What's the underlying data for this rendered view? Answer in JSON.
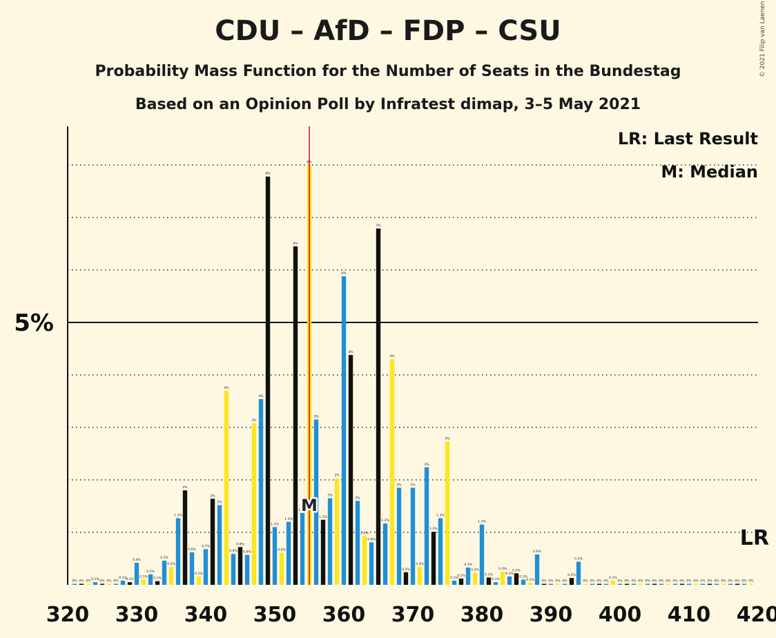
{
  "chart_data": {
    "type": "bar",
    "title": "CDU – AfD – FDP – CSU",
    "subtitle": "Probability Mass Function for the Number of Seats in the Bundestag",
    "subtitle2": "Based on an Opinion Poll by Infratest dimap, 3–5 May 2021",
    "copyright": "© 2021 Filip van Laenen",
    "xlim": [
      320,
      420
    ],
    "ylim": [
      0,
      11
    ],
    "x_ticks": [
      320,
      330,
      340,
      350,
      360,
      370,
      380,
      390,
      400,
      410,
      420
    ],
    "y_ticks": [
      {
        "value": 5,
        "label": "5%"
      }
    ],
    "gridlines": [
      1,
      2,
      3,
      4,
      5,
      6,
      7,
      8
    ],
    "grid": true,
    "legend": [
      "LR: Last Result",
      "M: Median"
    ],
    "legend_position": "top-right",
    "median": 355,
    "median_label": "M",
    "last_result_label": "LR",
    "colors": {
      "blue": "#1f8fd6",
      "yellow": "#fbe621",
      "black": "#111111",
      "median_line": "#d0021b",
      "background": "#fef8e2"
    },
    "bars": [
      {
        "seats": 321,
        "value": 0.02,
        "color": "blue",
        "label": "0%"
      },
      {
        "seats": 322,
        "value": 0.02,
        "color": "black",
        "label": "0%"
      },
      {
        "seats": 323,
        "value": 0.02,
        "color": "yellow",
        "label": "0%"
      },
      {
        "seats": 324,
        "value": 0.05,
        "color": "blue",
        "label": "0.1%"
      },
      {
        "seats": 325,
        "value": 0.02,
        "color": "black",
        "label": "0%"
      },
      {
        "seats": 326,
        "value": 0.02,
        "color": "yellow",
        "label": "0%"
      },
      {
        "seats": 327,
        "value": 0.02,
        "color": "blue",
        "label": "0%"
      },
      {
        "seats": 328,
        "value": 0.08,
        "color": "blue",
        "label": "0.1%"
      },
      {
        "seats": 329,
        "value": 0.05,
        "color": "black",
        "label": "0.1%"
      },
      {
        "seats": 330,
        "value": 0.42,
        "color": "blue",
        "label": "0.4%"
      },
      {
        "seats": 331,
        "value": 0.1,
        "color": "yellow",
        "label": "0.1%"
      },
      {
        "seats": 332,
        "value": 0.2,
        "color": "blue",
        "label": "0.2%"
      },
      {
        "seats": 333,
        "value": 0.07,
        "color": "black",
        "label": "0.1%"
      },
      {
        "seats": 334,
        "value": 0.46,
        "color": "blue",
        "label": "0.5%"
      },
      {
        "seats": 335,
        "value": 0.34,
        "color": "yellow",
        "label": "0.4%"
      },
      {
        "seats": 336,
        "value": 1.27,
        "color": "blue",
        "label": "1.3%"
      },
      {
        "seats": 337,
        "value": 1.8,
        "color": "black",
        "label": "2%"
      },
      {
        "seats": 338,
        "value": 0.62,
        "color": "blue",
        "label": "0.6%"
      },
      {
        "seats": 339,
        "value": 0.16,
        "color": "yellow",
        "label": "0.2%"
      },
      {
        "seats": 340,
        "value": 0.68,
        "color": "blue",
        "label": "0.7%"
      },
      {
        "seats": 341,
        "value": 1.64,
        "color": "black",
        "label": "2%"
      },
      {
        "seats": 342,
        "value": 1.52,
        "color": "blue",
        "label": "2%"
      },
      {
        "seats": 343,
        "value": 3.7,
        "color": "yellow",
        "label": "4%"
      },
      {
        "seats": 344,
        "value": 0.59,
        "color": "blue",
        "label": "0.6%"
      },
      {
        "seats": 345,
        "value": 0.72,
        "color": "black",
        "label": "0.8%"
      },
      {
        "seats": 346,
        "value": 0.57,
        "color": "blue",
        "label": "0.6%"
      },
      {
        "seats": 347,
        "value": 3.08,
        "color": "yellow",
        "label": "3%"
      },
      {
        "seats": 348,
        "value": 3.54,
        "color": "blue",
        "label": "4%"
      },
      {
        "seats": 349,
        "value": 7.78,
        "color": "black",
        "label": "8%"
      },
      {
        "seats": 350,
        "value": 1.1,
        "color": "blue",
        "label": "1.1%"
      },
      {
        "seats": 351,
        "value": 0.61,
        "color": "yellow",
        "label": "0.6%"
      },
      {
        "seats": 352,
        "value": 1.2,
        "color": "blue",
        "label": "1.2%"
      },
      {
        "seats": 353,
        "value": 6.45,
        "color": "black",
        "label": "6%"
      },
      {
        "seats": 354,
        "value": 1.37,
        "color": "blue",
        "label": "1.4%"
      },
      {
        "seats": 355,
        "value": 8.0,
        "color": "yellow",
        "label": "8%"
      },
      {
        "seats": 356,
        "value": 3.15,
        "color": "blue",
        "label": "3%"
      },
      {
        "seats": 357,
        "value": 1.24,
        "color": "black",
        "label": "1.3%"
      },
      {
        "seats": 358,
        "value": 1.65,
        "color": "blue",
        "label": "2%"
      },
      {
        "seats": 359,
        "value": 2.03,
        "color": "yellow",
        "label": "2%"
      },
      {
        "seats": 360,
        "value": 5.88,
        "color": "blue",
        "label": "6%"
      },
      {
        "seats": 361,
        "value": 4.38,
        "color": "black",
        "label": "4%"
      },
      {
        "seats": 362,
        "value": 1.6,
        "color": "blue",
        "label": "2%"
      },
      {
        "seats": 363,
        "value": 0.93,
        "color": "yellow",
        "label": "1.0%"
      },
      {
        "seats": 364,
        "value": 0.81,
        "color": "blue",
        "label": "0.8%"
      },
      {
        "seats": 365,
        "value": 6.79,
        "color": "black",
        "label": "7%"
      },
      {
        "seats": 366,
        "value": 1.17,
        "color": "blue",
        "label": "1.2%"
      },
      {
        "seats": 367,
        "value": 4.3,
        "color": "yellow",
        "label": "4%"
      },
      {
        "seats": 368,
        "value": 1.85,
        "color": "blue",
        "label": "2%"
      },
      {
        "seats": 369,
        "value": 0.24,
        "color": "black",
        "label": "0.2%"
      },
      {
        "seats": 370,
        "value": 1.85,
        "color": "blue",
        "label": "2%"
      },
      {
        "seats": 371,
        "value": 0.34,
        "color": "yellow",
        "label": "0.4%"
      },
      {
        "seats": 372,
        "value": 2.24,
        "color": "blue",
        "label": "2%"
      },
      {
        "seats": 373,
        "value": 1.01,
        "color": "black",
        "label": "1.0%"
      },
      {
        "seats": 374,
        "value": 1.27,
        "color": "blue",
        "label": "1.3%"
      },
      {
        "seats": 375,
        "value": 2.73,
        "color": "yellow",
        "label": "3%"
      },
      {
        "seats": 376,
        "value": 0.08,
        "color": "blue",
        "label": "0.1%"
      },
      {
        "seats": 377,
        "value": 0.12,
        "color": "black",
        "label": "0.1%"
      },
      {
        "seats": 378,
        "value": 0.33,
        "color": "blue",
        "label": "0.3%"
      },
      {
        "seats": 379,
        "value": 0.23,
        "color": "yellow",
        "label": "0.2%"
      },
      {
        "seats": 380,
        "value": 1.15,
        "color": "blue",
        "label": "1.2%"
      },
      {
        "seats": 381,
        "value": 0.14,
        "color": "black",
        "label": "0.1%"
      },
      {
        "seats": 382,
        "value": 0.05,
        "color": "blue",
        "label": "0.1%"
      },
      {
        "seats": 383,
        "value": 0.25,
        "color": "yellow",
        "label": "0.3%"
      },
      {
        "seats": 384,
        "value": 0.16,
        "color": "blue",
        "label": "0.2%"
      },
      {
        "seats": 385,
        "value": 0.22,
        "color": "black",
        "label": "0.2%"
      },
      {
        "seats": 386,
        "value": 0.1,
        "color": "blue",
        "label": "0.1%"
      },
      {
        "seats": 387,
        "value": 0.04,
        "color": "yellow",
        "label": "0.1%"
      },
      {
        "seats": 388,
        "value": 0.58,
        "color": "blue",
        "label": "0.6%"
      },
      {
        "seats": 389,
        "value": 0.02,
        "color": "black",
        "label": "0%"
      },
      {
        "seats": 390,
        "value": 0.02,
        "color": "blue",
        "label": "0%"
      },
      {
        "seats": 391,
        "value": 0.02,
        "color": "yellow",
        "label": "0%"
      },
      {
        "seats": 392,
        "value": 0.02,
        "color": "blue",
        "label": "0%"
      },
      {
        "seats": 393,
        "value": 0.13,
        "color": "black",
        "label": "0.2%"
      },
      {
        "seats": 394,
        "value": 0.44,
        "color": "blue",
        "label": "0.5%"
      },
      {
        "seats": 395,
        "value": 0.02,
        "color": "yellow",
        "label": "0%"
      },
      {
        "seats": 396,
        "value": 0.02,
        "color": "blue",
        "label": "0%"
      },
      {
        "seats": 397,
        "value": 0.02,
        "color": "black",
        "label": "0%"
      },
      {
        "seats": 398,
        "value": 0.02,
        "color": "blue",
        "label": "0%"
      },
      {
        "seats": 399,
        "value": 0.08,
        "color": "yellow",
        "label": "0.1%"
      },
      {
        "seats": 400,
        "value": 0.02,
        "color": "blue",
        "label": "0%"
      },
      {
        "seats": 401,
        "value": 0.02,
        "color": "black",
        "label": "0%"
      },
      {
        "seats": 402,
        "value": 0.02,
        "color": "blue",
        "label": "0%"
      },
      {
        "seats": 403,
        "value": 0.02,
        "color": "yellow",
        "label": "0%"
      },
      {
        "seats": 404,
        "value": 0.02,
        "color": "blue",
        "label": "0%"
      },
      {
        "seats": 405,
        "value": 0.02,
        "color": "black",
        "label": "0%"
      },
      {
        "seats": 406,
        "value": 0.02,
        "color": "blue",
        "label": "0%"
      },
      {
        "seats": 407,
        "value": 0.02,
        "color": "yellow",
        "label": "0%"
      },
      {
        "seats": 408,
        "value": 0.02,
        "color": "blue",
        "label": "0%"
      },
      {
        "seats": 409,
        "value": 0.02,
        "color": "black",
        "label": "0%"
      },
      {
        "seats": 410,
        "value": 0.02,
        "color": "blue",
        "label": "0%"
      },
      {
        "seats": 411,
        "value": 0.02,
        "color": "yellow",
        "label": "0%"
      },
      {
        "seats": 412,
        "value": 0.02,
        "color": "blue",
        "label": "0%"
      },
      {
        "seats": 413,
        "value": 0.02,
        "color": "black",
        "label": "0%"
      },
      {
        "seats": 414,
        "value": 0.02,
        "color": "blue",
        "label": "0%"
      },
      {
        "seats": 415,
        "value": 0.02,
        "color": "yellow",
        "label": "0%"
      },
      {
        "seats": 416,
        "value": 0.02,
        "color": "blue",
        "label": "0%"
      },
      {
        "seats": 417,
        "value": 0.02,
        "color": "black",
        "label": "0%"
      },
      {
        "seats": 418,
        "value": 0.02,
        "color": "blue",
        "label": "0%"
      },
      {
        "seats": 419,
        "value": 0.02,
        "color": "yellow",
        "label": "0%"
      }
    ]
  }
}
